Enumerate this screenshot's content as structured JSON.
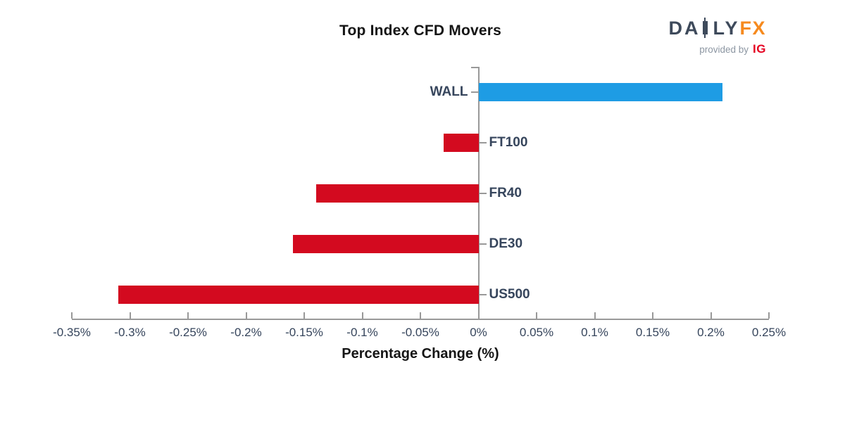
{
  "title": "Top Index CFD Movers",
  "logo": {
    "part1": "DA",
    "part2": "LY",
    "part3": "FX",
    "candlestick_icon": "candlestick-icon",
    "provided_by": "provided by",
    "ig": "IG",
    "slate_color": "#3E4A5B",
    "fx_color": "#F68A1E",
    "provided_by_color": "#8C96A2",
    "ig_color": "#E50020"
  },
  "chart_data": {
    "type": "bar",
    "orientation": "horizontal",
    "title": "Top Index CFD Movers",
    "categories": [
      "WALL",
      "FT100",
      "FR40",
      "DE30",
      "US500"
    ],
    "values": [
      0.21,
      -0.03,
      -0.14,
      -0.16,
      -0.31
    ],
    "unit": "%",
    "xlabel": "Percentage Change (%)",
    "ylabel": "",
    "xlim": [
      -0.35,
      0.25
    ],
    "xticks": [
      -0.35,
      -0.3,
      -0.25,
      -0.2,
      -0.15,
      -0.1,
      -0.05,
      0,
      0.05,
      0.1,
      0.15,
      0.2,
      0.25
    ],
    "xtick_labels": [
      "-0.35%",
      "-0.3%",
      "-0.25%",
      "-0.2%",
      "-0.15%",
      "-0.1%",
      "-0.05%",
      "0%",
      "0.05%",
      "0.1%",
      "0.15%",
      "0.2%",
      "0.25%"
    ],
    "grid": false,
    "legend_position": "none",
    "positive_color": "#1E9CE4",
    "negative_color": "#D30A1F",
    "axis_color": "#999999",
    "tick_text_color": "#36455C",
    "category_text_color": "#36455C"
  }
}
